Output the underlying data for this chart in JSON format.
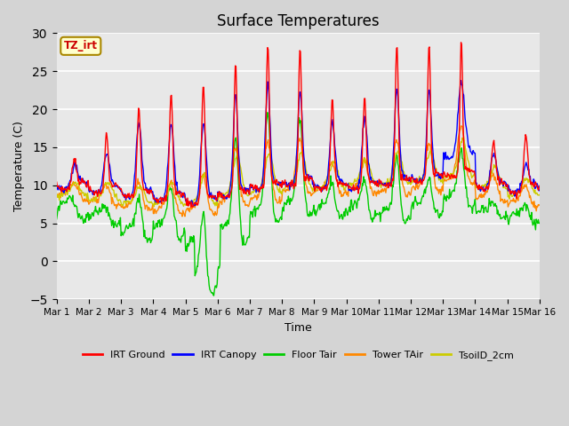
{
  "title": "Surface Temperatures",
  "xlabel": "Time",
  "ylabel": "Temperature (C)",
  "ylim": [
    -5,
    30
  ],
  "fig_bg_color": "#d4d4d4",
  "plot_bg_color": "#e8e8e8",
  "xtick_labels": [
    "Mar 1",
    "Mar 2",
    "Mar 3",
    "Mar 4",
    "Mar 5",
    "Mar 6",
    "Mar 7",
    "Mar 8",
    "Mar 9",
    "Mar 10",
    "Mar 11",
    "Mar 12",
    "Mar 13",
    "Mar 14",
    "Mar 15",
    "Mar 16"
  ],
  "timezone_label": "TZ_irt",
  "legend_entries": [
    "IRT Ground",
    "IRT Canopy",
    "Floor Tair",
    "Tower TAir",
    "TsoilD_2cm"
  ],
  "line_colors": [
    "#ff0000",
    "#0000ff",
    "#00cc00",
    "#ff8800",
    "#cccc00"
  ],
  "n_days": 15,
  "pts_per_day": 48
}
